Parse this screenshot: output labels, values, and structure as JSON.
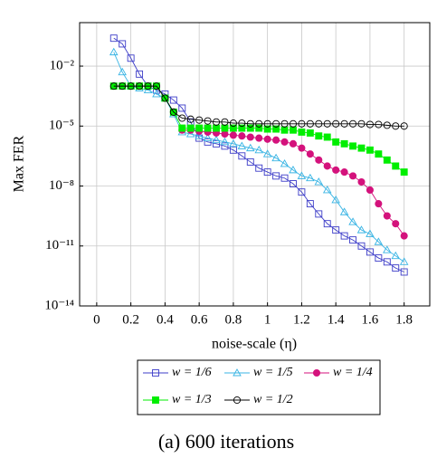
{
  "chart_data": {
    "type": "line",
    "xlabel": "noise-scale (η)",
    "ylabel": "Max FER",
    "caption": "(a) 600 iterations",
    "log_y": true,
    "grid": true,
    "legend": "bottom",
    "xlim": [
      -0.1,
      1.95
    ],
    "ylim": [
      1e-14,
      1.5
    ],
    "xticks": [
      0,
      0.2,
      0.4,
      0.6,
      0.8,
      1,
      1.2,
      1.4,
      1.6,
      1.8
    ],
    "yticks": [
      {
        "value": 1e-14,
        "label": "10⁻¹⁴"
      },
      {
        "value": 1e-11,
        "label": "10⁻¹¹"
      },
      {
        "value": 1e-08,
        "label": "10⁻⁸"
      },
      {
        "value": 1e-05,
        "label": "10⁻⁵"
      },
      {
        "value": 0.01,
        "label": "10⁻²"
      }
    ],
    "x": [
      0.1,
      0.15,
      0.2,
      0.25,
      0.3,
      0.35,
      0.4,
      0.45,
      0.5,
      0.55,
      0.6,
      0.65,
      0.7,
      0.75,
      0.8,
      0.85,
      0.9,
      0.95,
      1.0,
      1.05,
      1.1,
      1.15,
      1.2,
      1.25,
      1.3,
      1.35,
      1.4,
      1.45,
      1.5,
      1.55,
      1.6,
      1.65,
      1.7,
      1.75,
      1.8
    ],
    "series": [
      {
        "name": "w = 1/6",
        "color": "#3c3cc8",
        "marker": "square-open",
        "values": [
          0.25,
          0.13,
          0.025,
          0.004,
          0.001,
          0.00063,
          0.0004,
          0.0002,
          7.9e-05,
          1.6e-05,
          2.5e-06,
          1.6e-06,
          1.3e-06,
          1e-06,
          6.3e-07,
          3.2e-07,
          1.6e-07,
          7.9e-08,
          5e-08,
          3.2e-08,
          2.5e-08,
          1.3e-08,
          5e-09,
          1.3e-09,
          4e-10,
          1.3e-10,
          6.3e-11,
          3.2e-11,
          2e-11,
          1e-11,
          5e-12,
          2.5e-12,
          1.6e-12,
          7.9e-13,
          5e-13
        ]
      },
      {
        "name": "w = 1/5",
        "color": "#38b4e4",
        "marker": "triangle-open",
        "values": [
          0.05,
          0.005,
          0.001,
          0.00079,
          0.00063,
          0.0004,
          0.00025,
          4e-05,
          5e-06,
          4e-06,
          3.2e-06,
          2.5e-06,
          2e-06,
          1.6e-06,
          1.3e-06,
          1e-06,
          7.9e-07,
          6.3e-07,
          4e-07,
          2.5e-07,
          1.3e-07,
          6.3e-08,
          3.2e-08,
          2.5e-08,
          1.6e-08,
          6.3e-09,
          2e-09,
          5e-10,
          1.6e-10,
          6.3e-11,
          4e-11,
          1.6e-11,
          6.3e-12,
          3.2e-12,
          1.6e-12
        ]
      },
      {
        "name": "w = 1/4",
        "color": "#d4127c",
        "marker": "circle-filled",
        "values": [
          null,
          null,
          null,
          null,
          null,
          null,
          null,
          null,
          6.3e-06,
          6.3e-06,
          5.6e-06,
          5e-06,
          4.5e-06,
          4e-06,
          3.5e-06,
          3.2e-06,
          2.8e-06,
          2.5e-06,
          2.2e-06,
          2e-06,
          1.6e-06,
          1.3e-06,
          7.9e-07,
          4e-07,
          2e-07,
          1e-07,
          6.3e-08,
          5e-08,
          3.2e-08,
          1.6e-08,
          6.3e-09,
          1.3e-09,
          3.2e-10,
          1.3e-10,
          3.2e-11
        ]
      },
      {
        "name": "w = 1/3",
        "color": "#00ee00",
        "marker": "square-filled",
        "values": [
          0.001,
          0.001,
          0.001,
          0.001,
          0.001,
          0.001,
          0.00025,
          5e-05,
          7.9e-06,
          7.9e-06,
          7.9e-06,
          7.9e-06,
          7.9e-06,
          7.9e-06,
          7.9e-06,
          7.9e-06,
          7.9e-06,
          7.9e-06,
          7.1e-06,
          7.1e-06,
          6.3e-06,
          6.3e-06,
          5e-06,
          4.5e-06,
          3.2e-06,
          2.8e-06,
          1.6e-06,
          1.3e-06,
          1e-06,
          7.9e-07,
          6.3e-07,
          4e-07,
          2e-07,
          1e-07,
          5e-08
        ]
      },
      {
        "name": "w = 1/2",
        "color": "#000000",
        "marker": "circle-open",
        "values": [
          0.001,
          0.001,
          0.001,
          0.001,
          0.001,
          0.001,
          0.00025,
          5e-05,
          2.5e-05,
          2.2e-05,
          2e-05,
          1.8e-05,
          1.6e-05,
          1.6e-05,
          1.4e-05,
          1.4e-05,
          1.3e-05,
          1.3e-05,
          1.3e-05,
          1.3e-05,
          1.3e-05,
          1.3e-05,
          1.3e-05,
          1.3e-05,
          1.3e-05,
          1.3e-05,
          1.3e-05,
          1.3e-05,
          1.3e-05,
          1.3e-05,
          1.2e-05,
          1.2e-05,
          1.1e-05,
          1e-05,
          1e-05
        ]
      }
    ]
  }
}
